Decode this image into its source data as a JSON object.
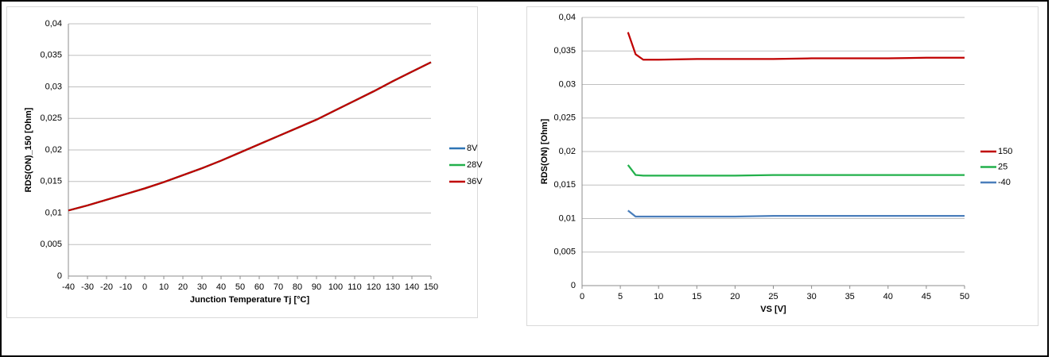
{
  "chart_data": [
    {
      "type": "line",
      "xlabel": "Junction Temperature Tj [°C]",
      "ylabel": "RDS(ON)_150 [Ohm]",
      "x": [
        -40,
        -30,
        -20,
        -10,
        0,
        10,
        20,
        30,
        40,
        50,
        60,
        70,
        80,
        90,
        100,
        110,
        120,
        130,
        140,
        150
      ],
      "series": [
        {
          "name": "8V",
          "color": "#2e75b6",
          "values": [
            0.0104,
            0.0112,
            0.0121,
            0.013,
            0.0139,
            0.0149,
            0.016,
            0.0171,
            0.0183,
            0.0196,
            0.0209,
            0.0222,
            0.0235,
            0.0248,
            0.0263,
            0.0278,
            0.0293,
            0.0309,
            0.0324,
            0.0339
          ]
        },
        {
          "name": "28V",
          "color": "#22b04b",
          "values": [
            0.0104,
            0.0112,
            0.0121,
            0.013,
            0.0139,
            0.0149,
            0.016,
            0.0171,
            0.0183,
            0.0196,
            0.0209,
            0.0222,
            0.0235,
            0.0248,
            0.0263,
            0.0278,
            0.0293,
            0.0309,
            0.0324,
            0.0339
          ]
        },
        {
          "name": "36V",
          "color": "#c00000",
          "values": [
            0.0104,
            0.0112,
            0.0121,
            0.013,
            0.0139,
            0.0149,
            0.016,
            0.0171,
            0.0183,
            0.0196,
            0.0209,
            0.0222,
            0.0235,
            0.0248,
            0.0263,
            0.0278,
            0.0293,
            0.0309,
            0.0324,
            0.0339
          ]
        }
      ],
      "xlim": [
        -40,
        150
      ],
      "xticks": [
        -40,
        -30,
        -20,
        -10,
        0,
        10,
        20,
        30,
        40,
        50,
        60,
        70,
        80,
        90,
        100,
        110,
        120,
        130,
        140,
        150
      ],
      "ylim": [
        0,
        0.04
      ],
      "yticks": [
        0,
        {
          "value": 0.005,
          "label": "0,005"
        },
        {
          "value": 0.01,
          "label": "0,01"
        },
        {
          "value": 0.015,
          "label": "0,015"
        },
        {
          "value": 0.02,
          "label": "0,02"
        },
        {
          "value": 0.025,
          "label": "0,025"
        },
        {
          "value": 0.03,
          "label": "0,03"
        },
        {
          "value": 0.035,
          "label": "0,035"
        },
        {
          "value": 0.04,
          "label": "0,04"
        }
      ],
      "grid": true,
      "legend": "right"
    },
    {
      "type": "line",
      "xlabel": "VS [V]",
      "ylabel": "RDS(ON) [Ohm]",
      "x": [
        6,
        7,
        8,
        10,
        15,
        20,
        25,
        30,
        35,
        40,
        45,
        50
      ],
      "series": [
        {
          "name": "150",
          "color": "#c00000",
          "values": [
            0.0378,
            0.0345,
            0.0337,
            0.0337,
            0.0338,
            0.0338,
            0.0338,
            0.0339,
            0.0339,
            0.0339,
            0.034,
            0.034
          ]
        },
        {
          "name": "25",
          "color": "#22b04b",
          "values": [
            0.018,
            0.0165,
            0.0164,
            0.0164,
            0.0164,
            0.0164,
            0.0165,
            0.0165,
            0.0165,
            0.0165,
            0.0165,
            0.0165
          ]
        },
        {
          "name": "-40",
          "color": "#4a7ebb",
          "values": [
            0.0112,
            0.0103,
            0.0103,
            0.0103,
            0.0103,
            0.0103,
            0.0104,
            0.0104,
            0.0104,
            0.0104,
            0.0104,
            0.0104
          ]
        }
      ],
      "xlim": [
        0,
        50
      ],
      "xticks": [
        0,
        5,
        10,
        15,
        20,
        25,
        30,
        35,
        40,
        45,
        50
      ],
      "ylim": [
        0,
        0.04
      ],
      "yticks": [
        0,
        {
          "value": 0.005,
          "label": "0,005"
        },
        {
          "value": 0.01,
          "label": "0,01"
        },
        {
          "value": 0.015,
          "label": "0,015"
        },
        {
          "value": 0.02,
          "label": "0,02"
        },
        {
          "value": 0.025,
          "label": "0,025"
        },
        {
          "value": 0.03,
          "label": "0,03"
        },
        {
          "value": 0.035,
          "label": "0,035"
        },
        {
          "value": 0.04,
          "label": "0,04"
        }
      ],
      "grid": true,
      "legend": "right"
    }
  ]
}
